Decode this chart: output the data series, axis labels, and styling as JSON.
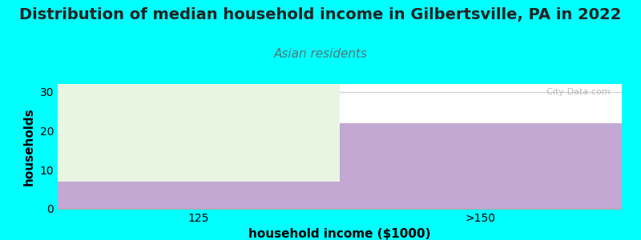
{
  "title": "Distribution of median household income in Gilbertsville, PA in 2022",
  "subtitle": "Asian residents",
  "xlabel": "household income ($1000)",
  "ylabel": "households",
  "categories": [
    "125",
    ">150"
  ],
  "values": [
    7,
    22
  ],
  "bar_max": 32,
  "ylim": [
    0,
    32
  ],
  "yticks": [
    0,
    10,
    20,
    30
  ],
  "bar_color": "#C4A8D4",
  "bg_color_left": "#E8F5E0",
  "bg_color_right": "#C4A8D4",
  "background": "#00FFFF",
  "plot_bg": "#FFFFFF",
  "title_fontsize": 14,
  "subtitle_fontsize": 11,
  "subtitle_color": "#557777",
  "axis_label_fontsize": 11,
  "tick_fontsize": 10,
  "watermark": "  City-Data.com",
  "title_color": "#222222"
}
